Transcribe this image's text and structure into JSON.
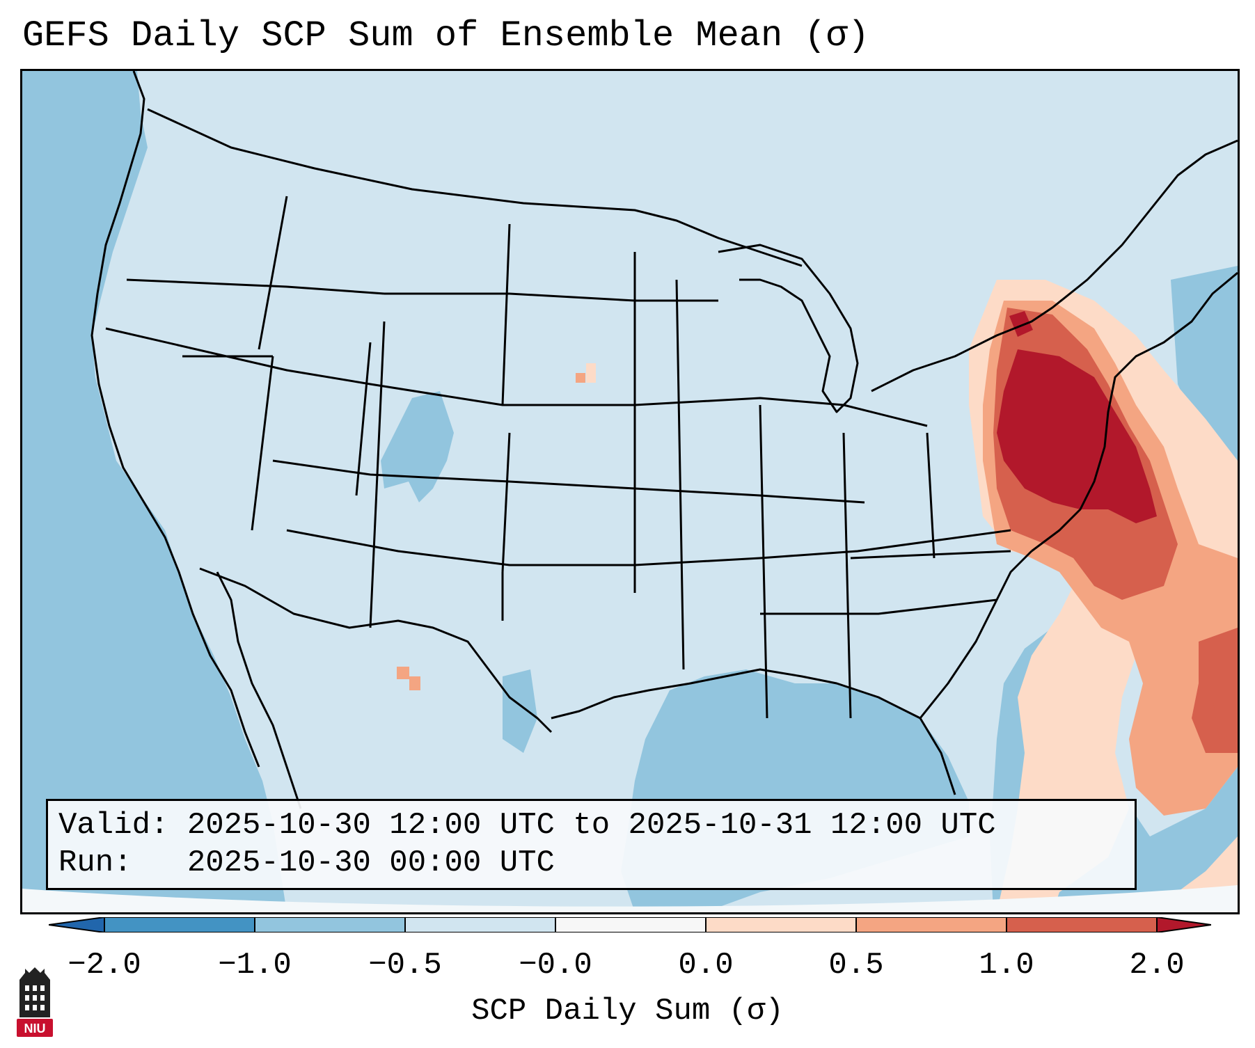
{
  "title": "GEFS Daily SCP Sum of Ensemble Mean (σ)",
  "info": {
    "valid_label": "Valid:",
    "valid_value": "2025-10-30 12:00 UTC to 2025-10-31 12:00 UTC",
    "run_label": "Run:",
    "run_value": "2025-10-30 00:00 UTC"
  },
  "colorbar": {
    "label": "SCP Daily Sum (σ)",
    "tick_labels": [
      "−2.0",
      "−1.0",
      "−0.5",
      "−0.0",
      "0.0",
      "0.5",
      "1.0",
      "2.0"
    ],
    "colors": {
      "below": "#2166ac",
      "b1": "#4393c3",
      "b2": "#92c5de",
      "b3": "#d1e5f0",
      "b4": "#f7f7f7",
      "b5": "#fddbc7",
      "b6": "#f4a582",
      "b7": "#d6604d",
      "above": "#b2182b"
    }
  },
  "logo": {
    "text": "NIU",
    "color": "#c8102e"
  },
  "map_colors": {
    "ocean": "#92c5de",
    "land": "#d1e5f0",
    "high": "#b2182b",
    "mid_high": "#d6604d",
    "mid": "#f4a582",
    "low": "#fddbc7",
    "off_domain": "#f4f8fa"
  }
}
